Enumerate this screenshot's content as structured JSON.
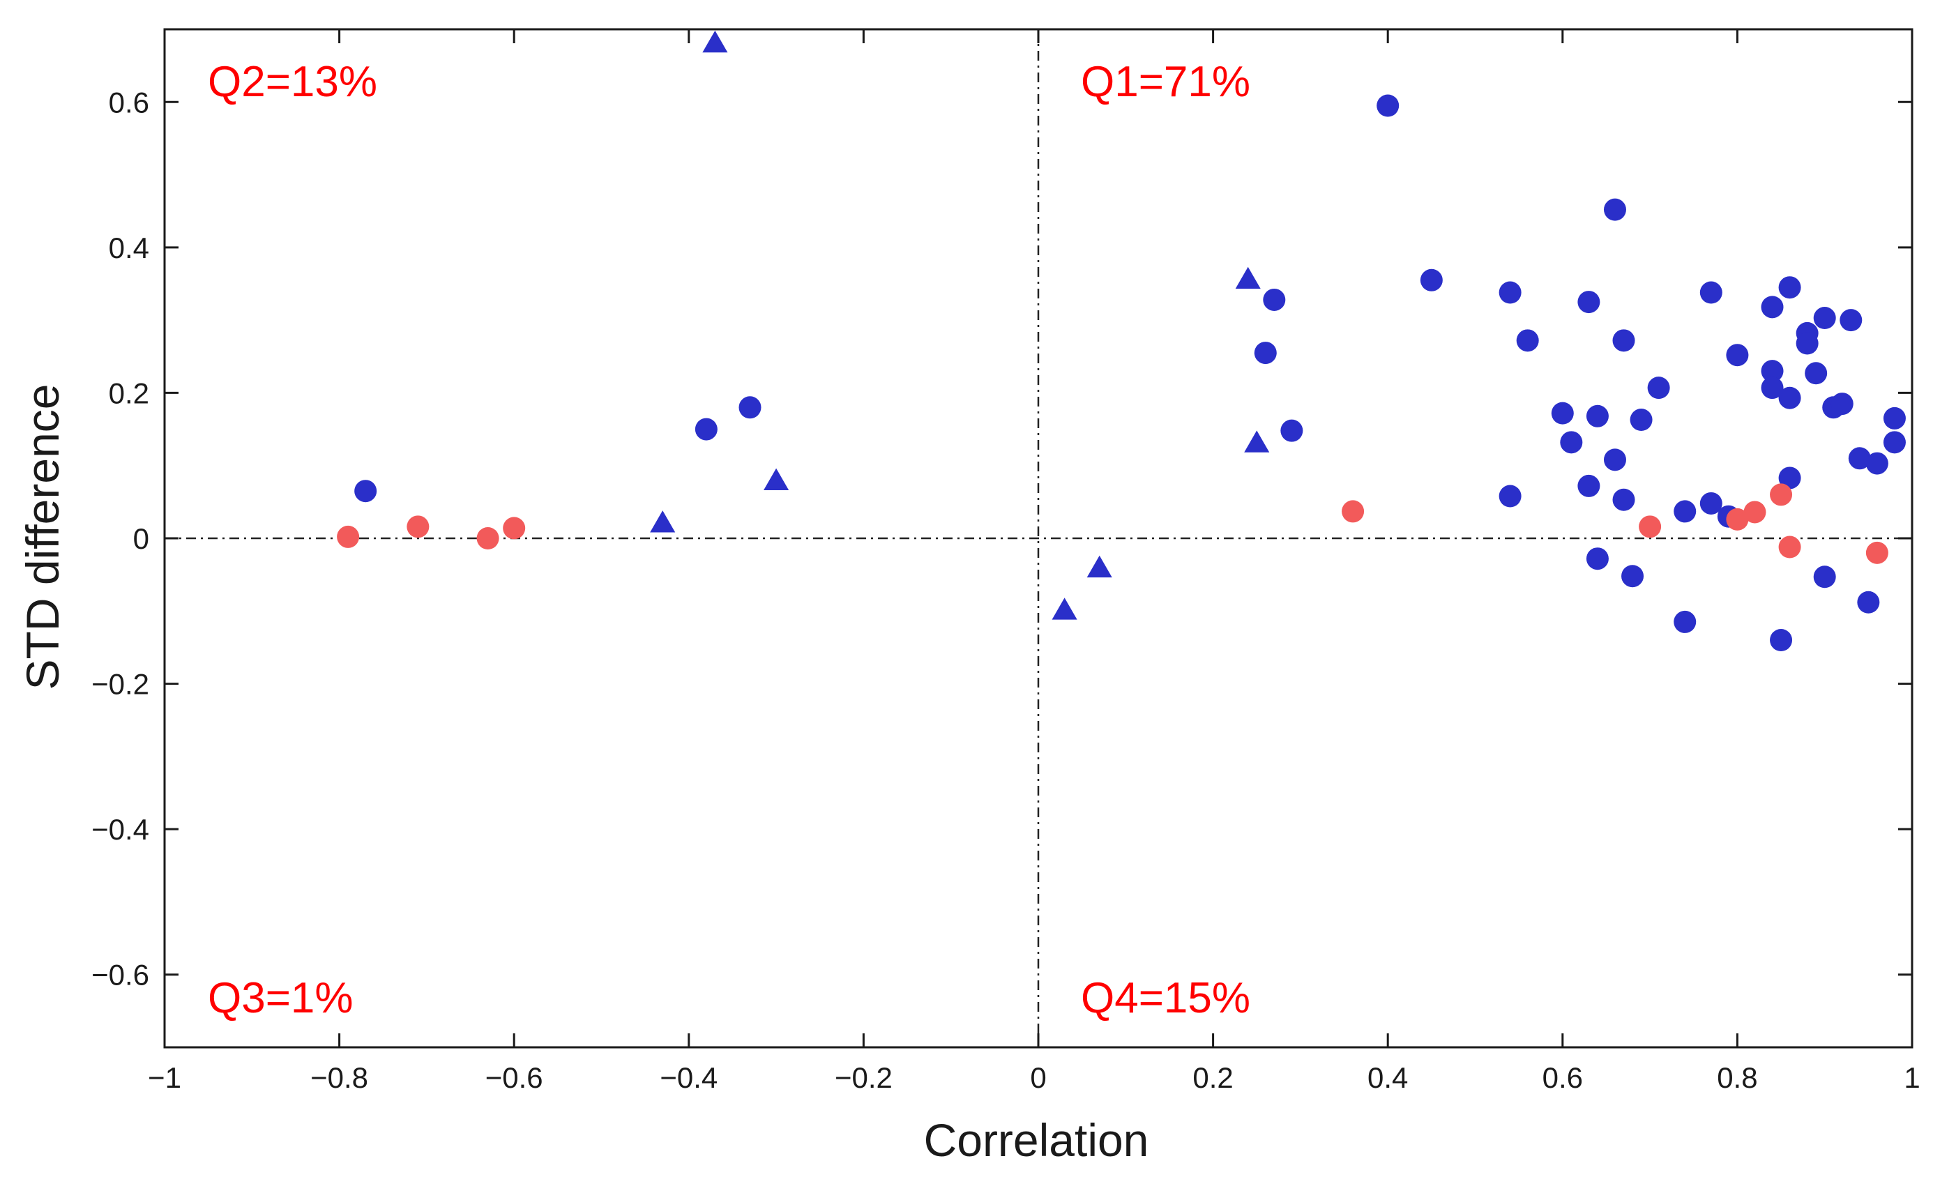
{
  "chart_data": {
    "type": "scatter",
    "title": "",
    "xlabel": "Correlation",
    "ylabel": "STD difference",
    "xlim": [
      -1,
      1
    ],
    "ylim": [
      -0.7,
      0.7
    ],
    "x_ticks": [
      -1,
      -0.8,
      -0.6,
      -0.4,
      -0.2,
      0,
      0.2,
      0.4,
      0.6,
      0.8,
      1
    ],
    "x_tick_labels": [
      "−1",
      "−0.8",
      "−0.6",
      "−0.4",
      "−0.2",
      "0",
      "0.2",
      "0.4",
      "0.6",
      "0.8",
      "1"
    ],
    "y_ticks": [
      -0.6,
      -0.4,
      -0.2,
      0,
      0.2,
      0.4,
      0.6
    ],
    "y_tick_labels": [
      "−0.6",
      "−0.4",
      "−0.2",
      "0",
      "0.2",
      "0.4",
      "0.6"
    ],
    "grid": false,
    "reference_lines": {
      "x": 0,
      "y": 0,
      "style": "dash-dot"
    },
    "quadrant_labels": {
      "q1": "Q1=71%",
      "q2": "Q2=13%",
      "q3": "Q3=1%",
      "q4": "Q4=15%"
    },
    "colors": {
      "blue": "#2a2fc9",
      "red": "#f25a5a",
      "quadrant_text": "#ff0000",
      "axis": "#1a1a1a"
    },
    "series": [
      {
        "name": "blue circles",
        "marker": "circle",
        "color": "#2a2fc9",
        "points": [
          [
            -0.77,
            0.065
          ],
          [
            -0.38,
            0.15
          ],
          [
            -0.33,
            0.18
          ],
          [
            0.26,
            0.255
          ],
          [
            0.27,
            0.328
          ],
          [
            0.29,
            0.148
          ],
          [
            0.4,
            0.595
          ],
          [
            0.45,
            0.355
          ],
          [
            0.54,
            0.338
          ],
          [
            0.54,
            0.058
          ],
          [
            0.56,
            0.272
          ],
          [
            0.6,
            0.172
          ],
          [
            0.61,
            0.132
          ],
          [
            0.63,
            0.325
          ],
          [
            0.63,
            0.072
          ],
          [
            0.64,
            -0.028
          ],
          [
            0.64,
            0.168
          ],
          [
            0.66,
            0.452
          ],
          [
            0.66,
            0.108
          ],
          [
            0.67,
            0.272
          ],
          [
            0.67,
            0.053
          ],
          [
            0.68,
            -0.052
          ],
          [
            0.69,
            0.163
          ],
          [
            0.71,
            0.207
          ],
          [
            0.74,
            0.037
          ],
          [
            0.74,
            -0.115
          ],
          [
            0.77,
            0.338
          ],
          [
            0.77,
            0.048
          ],
          [
            0.79,
            0.03
          ],
          [
            0.8,
            0.252
          ],
          [
            0.84,
            0.23
          ],
          [
            0.84,
            0.318
          ],
          [
            0.84,
            0.207
          ],
          [
            0.85,
            -0.14
          ],
          [
            0.86,
            0.345
          ],
          [
            0.86,
            0.083
          ],
          [
            0.86,
            0.193
          ],
          [
            0.88,
            0.282
          ],
          [
            0.88,
            0.268
          ],
          [
            0.89,
            0.227
          ],
          [
            0.9,
            0.303
          ],
          [
            0.9,
            -0.053
          ],
          [
            0.91,
            0.18
          ],
          [
            0.92,
            0.185
          ],
          [
            0.93,
            0.3
          ],
          [
            0.94,
            0.11
          ],
          [
            0.95,
            -0.088
          ],
          [
            0.96,
            0.103
          ],
          [
            0.98,
            0.165
          ],
          [
            0.98,
            0.132
          ]
        ]
      },
      {
        "name": "blue triangles",
        "marker": "triangle",
        "color": "#2a2fc9",
        "points": [
          [
            -0.37,
            0.68
          ],
          [
            -0.43,
            0.02
          ],
          [
            -0.3,
            0.078
          ],
          [
            0.24,
            0.355
          ],
          [
            0.25,
            0.13
          ],
          [
            0.03,
            -0.1
          ],
          [
            0.07,
            -0.042
          ]
        ]
      },
      {
        "name": "red circles",
        "marker": "circle",
        "color": "#f25a5a",
        "points": [
          [
            -0.79,
            0.002
          ],
          [
            -0.71,
            0.016
          ],
          [
            -0.63,
            0.0
          ],
          [
            -0.6,
            0.014
          ],
          [
            0.36,
            0.037
          ],
          [
            0.7,
            0.016
          ],
          [
            0.8,
            0.026
          ],
          [
            0.82,
            0.036
          ],
          [
            0.85,
            0.06
          ],
          [
            0.86,
            -0.012
          ],
          [
            0.96,
            -0.02
          ]
        ]
      }
    ]
  }
}
